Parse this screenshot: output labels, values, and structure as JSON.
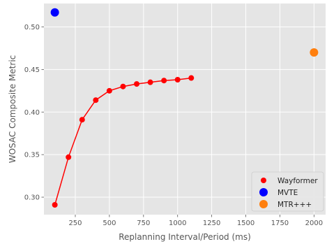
{
  "chart_data": {
    "type": "scatter",
    "title": "",
    "xlabel": "Replanning Interval/Period (ms)",
    "ylabel": "WOSAC Composite Metric",
    "xlim": [
      20,
      2085
    ],
    "ylim": [
      0.2795,
      0.5275
    ],
    "xticks": [
      250,
      500,
      750,
      1000,
      1250,
      1500,
      1750,
      2000
    ],
    "yticks": [
      0.3,
      0.35,
      0.4,
      0.45,
      0.5
    ],
    "xtick_labels": [
      "250",
      "500",
      "750",
      "1000",
      "1250",
      "1500",
      "1750",
      "2000"
    ],
    "ytick_labels": [
      "0.30",
      "0.35",
      "0.40",
      "0.45",
      "0.50"
    ],
    "grid": true,
    "legend_position": "bottom-right",
    "series": [
      {
        "name": "Wayformer",
        "color": "#ff0000",
        "marker": "circle",
        "line": true,
        "x": [
          100,
          200,
          300,
          400,
          500,
          600,
          700,
          800,
          900,
          1000,
          1100
        ],
        "y": [
          0.291,
          0.347,
          0.391,
          0.414,
          0.425,
          0.43,
          0.433,
          0.435,
          0.437,
          0.438,
          0.44
        ]
      },
      {
        "name": "MVTE",
        "color": "#0000ff",
        "marker": "circle",
        "line": false,
        "x": [
          100
        ],
        "y": [
          0.517
        ]
      },
      {
        "name": "MTR+++",
        "color": "#ff7f0e",
        "marker": "circle",
        "line": false,
        "x": [
          2000
        ],
        "y": [
          0.47
        ]
      }
    ]
  }
}
